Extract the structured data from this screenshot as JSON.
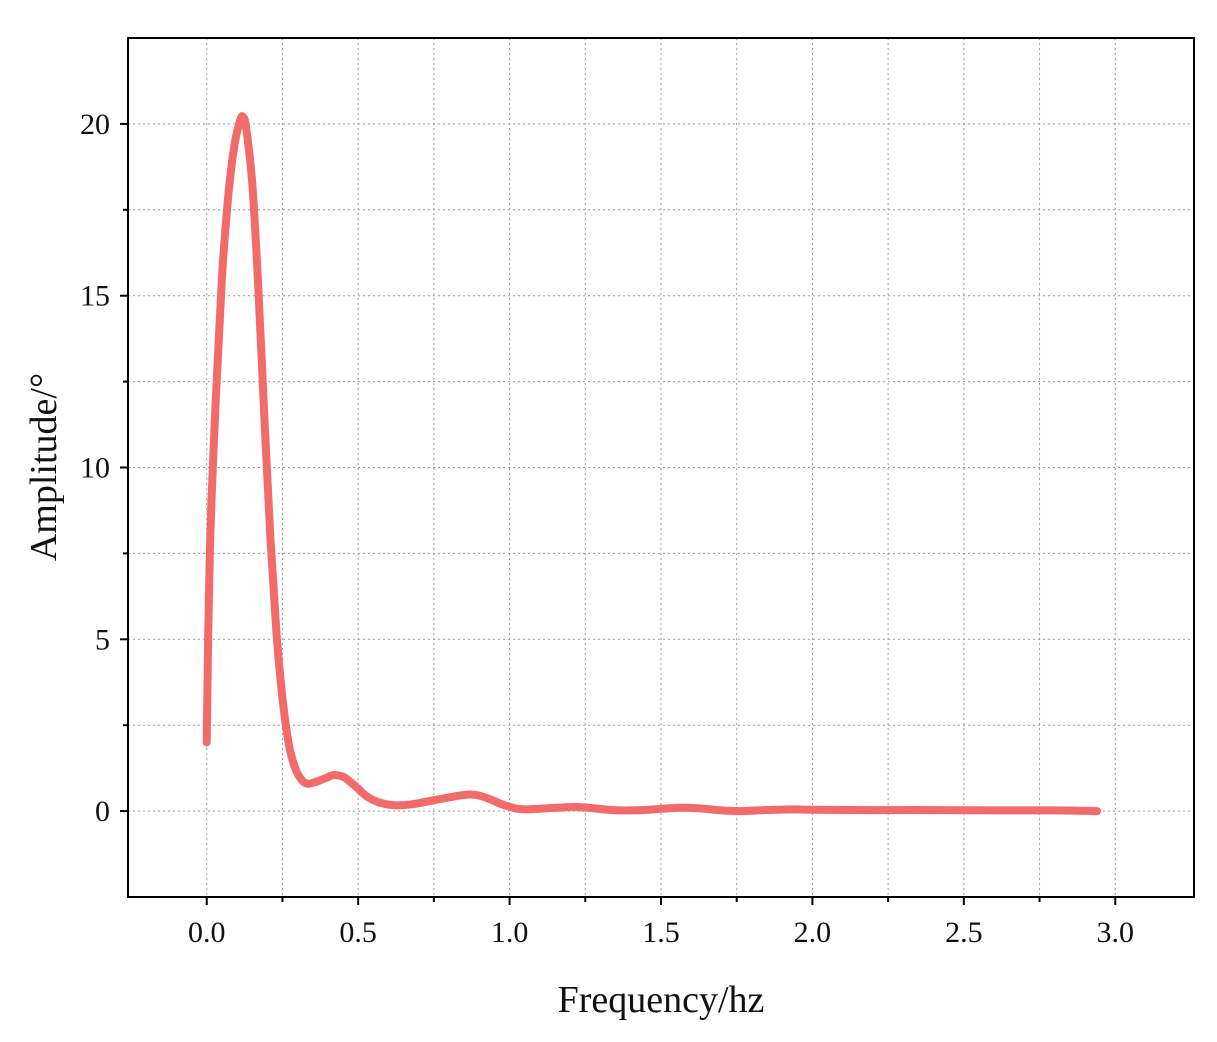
{
  "chart_data": {
    "type": "line",
    "title": "",
    "xlabel": "Frequency/hz",
    "ylabel": "Amplitude/°",
    "xlim": [
      -0.26,
      3.26
    ],
    "ylim": [
      -2.5,
      22.5
    ],
    "xticks": [
      0.0,
      0.5,
      1.0,
      1.5,
      2.0,
      2.5,
      3.0
    ],
    "xtick_labels": [
      "0.0",
      "0.5",
      "1.0",
      "1.5",
      "2.0",
      "2.5",
      "3.0"
    ],
    "yticks": [
      0,
      5,
      10,
      15,
      20
    ],
    "ytick_labels": [
      "0",
      "5",
      "10",
      "15",
      "20"
    ],
    "grid": true,
    "series_color": "#f26b6b",
    "series": [
      {
        "x": [
          0.0,
          0.01,
          0.03,
          0.05,
          0.07,
          0.09,
          0.11,
          0.12,
          0.13,
          0.15,
          0.17,
          0.19,
          0.21,
          0.23,
          0.25,
          0.27,
          0.29,
          0.31,
          0.33,
          0.36,
          0.39,
          0.42,
          0.45,
          0.47,
          0.5,
          0.53,
          0.57,
          0.62,
          0.68,
          0.74,
          0.8,
          0.86,
          0.9,
          0.94,
          0.98,
          1.02,
          1.06,
          1.1,
          1.16,
          1.22,
          1.28,
          1.34,
          1.4,
          1.46,
          1.52,
          1.58,
          1.64,
          1.7,
          1.76,
          1.82,
          1.88,
          1.94,
          2.0,
          2.2,
          2.4,
          2.6,
          2.8,
          2.94
        ],
        "y": [
          2.0,
          7.5,
          12.0,
          15.5,
          17.8,
          19.3,
          20.1,
          20.2,
          19.9,
          18.3,
          15.3,
          11.5,
          8.0,
          5.2,
          3.3,
          2.0,
          1.3,
          0.95,
          0.8,
          0.85,
          0.95,
          1.05,
          1.0,
          0.88,
          0.65,
          0.42,
          0.25,
          0.17,
          0.2,
          0.3,
          0.4,
          0.48,
          0.45,
          0.33,
          0.18,
          0.08,
          0.05,
          0.07,
          0.1,
          0.12,
          0.08,
          0.03,
          0.02,
          0.04,
          0.08,
          0.1,
          0.07,
          0.02,
          0.0,
          0.02,
          0.04,
          0.05,
          0.04,
          0.03,
          0.03,
          0.02,
          0.02,
          0.0
        ]
      }
    ]
  }
}
